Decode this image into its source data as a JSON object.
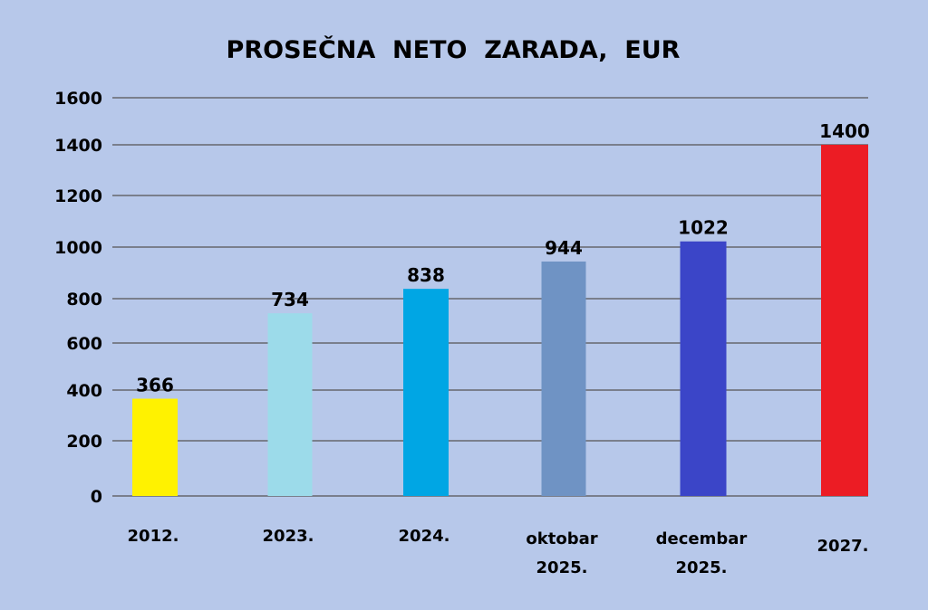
{
  "chart_data": {
    "type": "bar",
    "title": "PROSEČNA  NETO  ZARADA,  EUR",
    "xlabel": "",
    "ylabel": "",
    "ylim": [
      0,
      1600
    ],
    "yticks": [
      0,
      200,
      400,
      600,
      800,
      1000,
      1200,
      1400,
      1600
    ],
    "grid": true,
    "legend": "none",
    "categories": [
      [
        "2012."
      ],
      [
        "2023."
      ],
      [
        "2024."
      ],
      [
        "oktobar",
        "2025."
      ],
      [
        "decembar",
        "2025."
      ],
      [
        "2027."
      ]
    ],
    "values": [
      366,
      734,
      838,
      944,
      1022,
      1400
    ],
    "data_labels": [
      "366",
      "734",
      "838",
      "944",
      "1022",
      "1400"
    ],
    "colors": [
      "#fff200",
      "#9cdbea",
      "#00a6e4",
      "#6f93c4",
      "#3b45c8",
      "#ec1c24"
    ],
    "background": "#b7c8ea",
    "grid_color": "#7a7f8c"
  }
}
